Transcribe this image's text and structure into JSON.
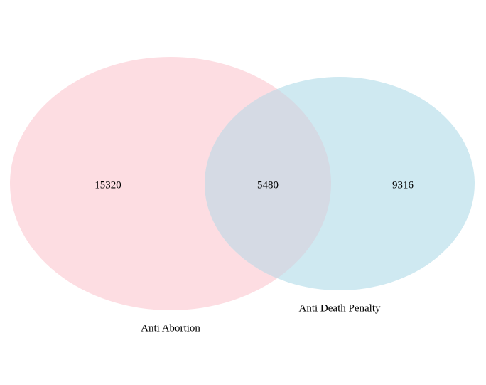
{
  "chart_data": {
    "type": "venn",
    "sets": [
      {
        "name": "Anti Abortion",
        "only": 15320,
        "color": "#fddde2"
      },
      {
        "name": "Anti Death Penalty",
        "only": 9316,
        "color": "#cfe9f1"
      }
    ],
    "intersection": 5480,
    "labels": {
      "set_a": "Anti Abortion",
      "set_b": "Anti Death Penalty",
      "a_only": "15320",
      "both": "5480",
      "b_only": "9316"
    },
    "overlap_color": "#d5dae4"
  }
}
